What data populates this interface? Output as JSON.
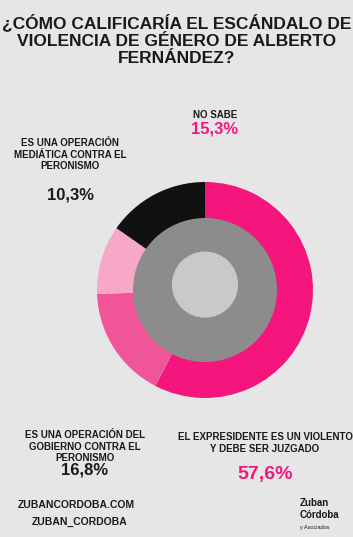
{
  "chart_data": {
    "type": "pie",
    "title": "¿CÓMO CALIFICARÍA EL ESCÁNDALO DE VIOLENCIA DE GÉNERO DE ALBERTO FERNÁNDEZ?",
    "categories": [
      "EL EXPRESIDENTE ES UN VIOLENTO Y DEBE SER JUZGADO",
      "ES UNA OPERACIÓN DEL GOBIERNO CONTRA EL PERONISMO",
      "ES UNA OPERACIÓN MEDIÁTICA CONTRA EL PERONISMO",
      "NO SABE"
    ],
    "values": [
      57.6,
      16.8,
      10.3,
      15.3
    ],
    "value_labels": [
      "57,6%",
      "16,8%",
      "10,3%",
      "15,3%"
    ],
    "colors": [
      "#f5167d",
      "#f0559a",
      "#f7a8c9",
      "#111111"
    ],
    "data_labels": true,
    "footer": [
      "ZUBANCORDOBA.COM",
      "ZUBAN_CORDOBA",
      "Zuban Córdoba",
      "y Asociados"
    ]
  }
}
